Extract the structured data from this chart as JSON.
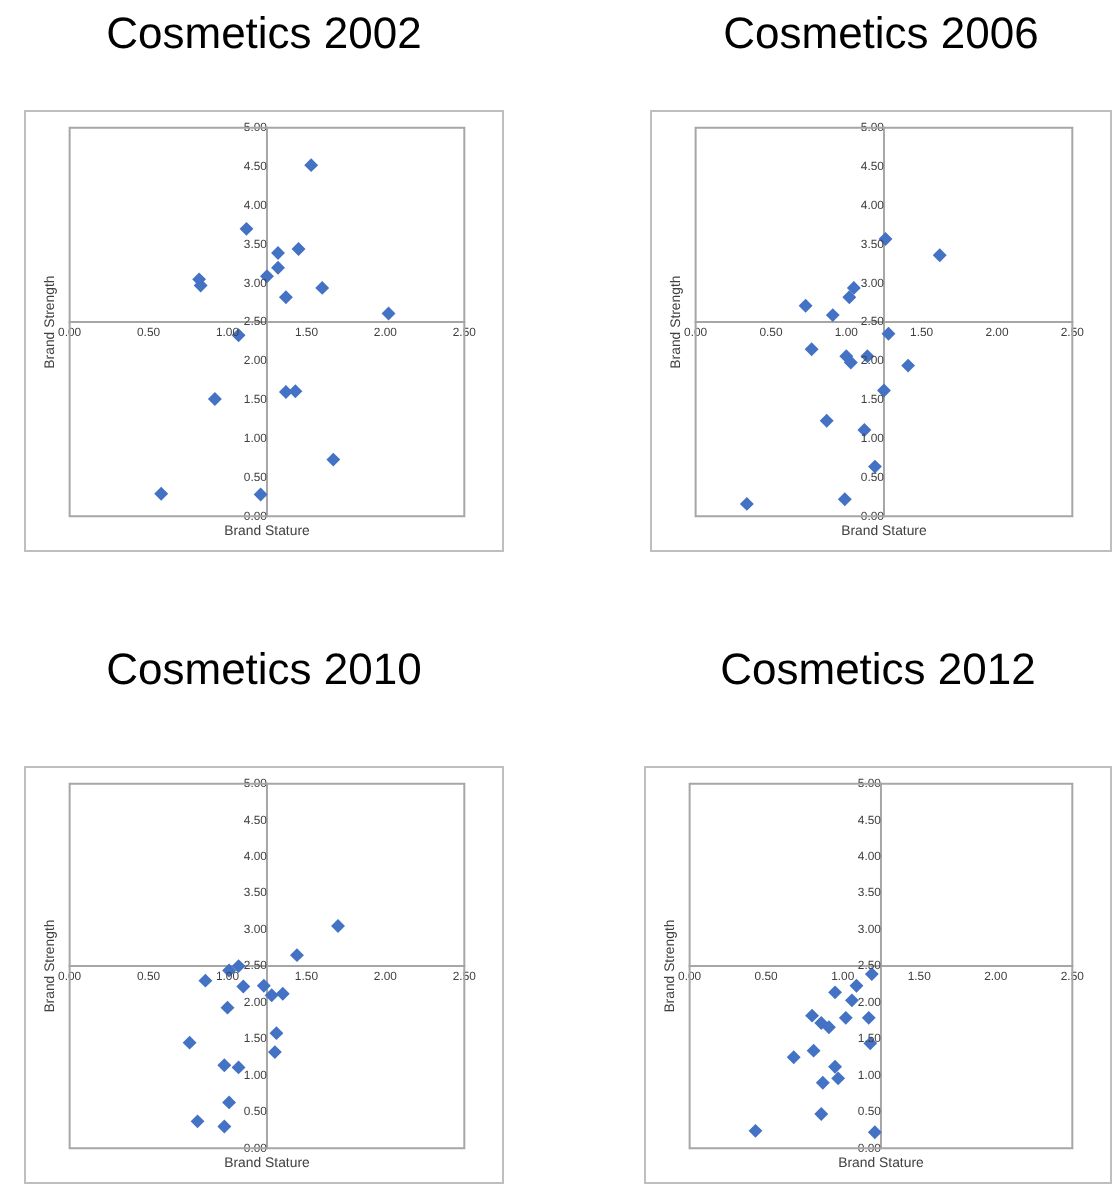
{
  "chart_data": [
    {
      "type": "scatter",
      "title": "Cosmetics 2002",
      "xlabel": "Brand Stature",
      "ylabel": "Brand Strength",
      "color": "#4472c4",
      "marker": "diamond",
      "x": [
        1.53,
        1.12,
        1.32,
        1.45,
        1.32,
        1.25,
        0.82,
        0.83,
        1.6,
        1.37,
        2.02,
        1.07,
        0.92,
        1.37,
        1.43,
        1.67,
        0.58,
        1.21
      ],
      "values": [
        4.52,
        3.7,
        3.39,
        3.44,
        3.2,
        3.09,
        3.05,
        2.97,
        2.94,
        2.82,
        2.61,
        2.33,
        1.51,
        1.6,
        1.61,
        0.73,
        0.29,
        0.28
      ],
      "xlim": [
        0,
        2.5
      ],
      "ylim": [
        0,
        5
      ],
      "xticks": [
        {
          "value": 0,
          "label": "0.00"
        },
        {
          "value": 0.5,
          "label": "0.50"
        },
        {
          "value": 1,
          "label": "1.00"
        },
        {
          "value": 1.5,
          "label": "1.50"
        },
        {
          "value": 2,
          "label": "2.00"
        },
        {
          "value": 2.5,
          "label": "2.50"
        }
      ],
      "yticks": [
        {
          "value": 0,
          "label": "0.00"
        },
        {
          "value": 0.5,
          "label": "0.50"
        },
        {
          "value": 1,
          "label": "1.00"
        },
        {
          "value": 1.5,
          "label": "1.50"
        },
        {
          "value": 2,
          "label": "2.00"
        },
        {
          "value": 2.5,
          "label": "2.50"
        },
        {
          "value": 3,
          "label": "3.00"
        },
        {
          "value": 3.5,
          "label": "3.50"
        },
        {
          "value": 4,
          "label": "4.00"
        },
        {
          "value": 4.5,
          "label": "4.50"
        },
        {
          "value": 5,
          "label": "5.00"
        }
      ]
    },
    {
      "type": "scatter",
      "title": "Cosmetics 2006",
      "xlabel": "Brand Stature",
      "ylabel": "Brand Strength",
      "color": "#4472c4",
      "marker": "diamond",
      "x": [
        1.26,
        1.62,
        1.05,
        1.02,
        0.73,
        0.91,
        1.28,
        0.77,
        1.0,
        1.03,
        1.14,
        1.41,
        1.25,
        0.87,
        1.12,
        1.19,
        0.99,
        0.34
      ],
      "values": [
        3.57,
        3.36,
        2.94,
        2.82,
        2.71,
        2.59,
        2.35,
        2.15,
        2.06,
        1.98,
        2.06,
        1.94,
        1.62,
        1.23,
        1.11,
        0.64,
        0.22,
        0.16
      ],
      "xlim": [
        0,
        2.5
      ],
      "ylim": [
        0,
        5
      ],
      "xticks": [
        {
          "value": 0,
          "label": "0.00"
        },
        {
          "value": 0.5,
          "label": "0.50"
        },
        {
          "value": 1,
          "label": "1.00"
        },
        {
          "value": 1.5,
          "label": "1.50"
        },
        {
          "value": 2,
          "label": "2.00"
        },
        {
          "value": 2.5,
          "label": "2.50"
        }
      ],
      "yticks": [
        {
          "value": 0,
          "label": "0.00"
        },
        {
          "value": 0.5,
          "label": "0.50"
        },
        {
          "value": 1,
          "label": "1.00"
        },
        {
          "value": 1.5,
          "label": "1.50"
        },
        {
          "value": 2,
          "label": "2.00"
        },
        {
          "value": 2.5,
          "label": "2.50"
        },
        {
          "value": 3,
          "label": "3.00"
        },
        {
          "value": 3.5,
          "label": "3.50"
        },
        {
          "value": 4,
          "label": "4.00"
        },
        {
          "value": 4.5,
          "label": "4.50"
        },
        {
          "value": 5,
          "label": "5.00"
        }
      ]
    },
    {
      "type": "scatter",
      "title": "Cosmetics 2010",
      "xlabel": "Brand Stature",
      "ylabel": "Brand Strength",
      "color": "#4472c4",
      "marker": "diamond",
      "x": [
        1.7,
        1.44,
        1.01,
        1.07,
        0.86,
        1.1,
        1.23,
        1.28,
        1.35,
        1.0,
        1.31,
        0.76,
        1.3,
        0.98,
        1.07,
        1.01,
        0.81,
        0.98
      ],
      "values": [
        3.05,
        2.65,
        2.44,
        2.5,
        2.3,
        2.22,
        2.23,
        2.1,
        2.12,
        1.93,
        1.58,
        1.45,
        1.32,
        1.14,
        1.11,
        0.63,
        0.37,
        0.3
      ],
      "xlim": [
        0,
        2.5
      ],
      "ylim": [
        0,
        5
      ],
      "xticks": [
        {
          "value": 0,
          "label": "0.00"
        },
        {
          "value": 0.5,
          "label": "0.50"
        },
        {
          "value": 1,
          "label": "1.00"
        },
        {
          "value": 1.5,
          "label": "1.50"
        },
        {
          "value": 2,
          "label": "2.00"
        },
        {
          "value": 2.5,
          "label": "2.50"
        }
      ],
      "yticks": [
        {
          "value": 0,
          "label": "0.00"
        },
        {
          "value": 0.5,
          "label": "0.50"
        },
        {
          "value": 1,
          "label": "1.00"
        },
        {
          "value": 1.5,
          "label": "1.50"
        },
        {
          "value": 2,
          "label": "2.00"
        },
        {
          "value": 2.5,
          "label": "2.50"
        },
        {
          "value": 3,
          "label": "3.00"
        },
        {
          "value": 3.5,
          "label": "3.50"
        },
        {
          "value": 4,
          "label": "4.00"
        },
        {
          "value": 4.5,
          "label": "4.50"
        },
        {
          "value": 5,
          "label": "5.00"
        }
      ]
    },
    {
      "type": "scatter",
      "title": "Cosmetics 2012",
      "xlabel": "Brand Stature",
      "ylabel": "Brand Strength",
      "color": "#4472c4",
      "marker": "diamond",
      "x": [
        1.19,
        1.09,
        0.95,
        1.06,
        0.8,
        1.02,
        1.17,
        0.86,
        0.91,
        1.18,
        0.81,
        0.68,
        0.95,
        0.87,
        0.97,
        0.86,
        0.43,
        1.21
      ],
      "values": [
        2.39,
        2.23,
        2.14,
        2.03,
        1.82,
        1.79,
        1.79,
        1.72,
        1.66,
        1.44,
        1.34,
        1.25,
        1.12,
        0.9,
        0.96,
        0.47,
        0.24,
        0.22
      ],
      "xlim": [
        0,
        2.5
      ],
      "ylim": [
        0,
        5
      ],
      "xticks": [
        {
          "value": 0,
          "label": "0.00"
        },
        {
          "value": 0.5,
          "label": "0.50"
        },
        {
          "value": 1,
          "label": "1.00"
        },
        {
          "value": 1.5,
          "label": "1.50"
        },
        {
          "value": 2,
          "label": "2.00"
        },
        {
          "value": 2.5,
          "label": "2.50"
        }
      ],
      "yticks": [
        {
          "value": 0,
          "label": "0.00"
        },
        {
          "value": 0.5,
          "label": "0.50"
        },
        {
          "value": 1,
          "label": "1.00"
        },
        {
          "value": 1.5,
          "label": "1.50"
        },
        {
          "value": 2,
          "label": "2.00"
        },
        {
          "value": 2.5,
          "label": "2.50"
        },
        {
          "value": 3,
          "label": "3.00"
        },
        {
          "value": 3.5,
          "label": "3.50"
        },
        {
          "value": 4,
          "label": "4.00"
        },
        {
          "value": 4.5,
          "label": "4.50"
        },
        {
          "value": 5,
          "label": "5.00"
        }
      ]
    }
  ]
}
